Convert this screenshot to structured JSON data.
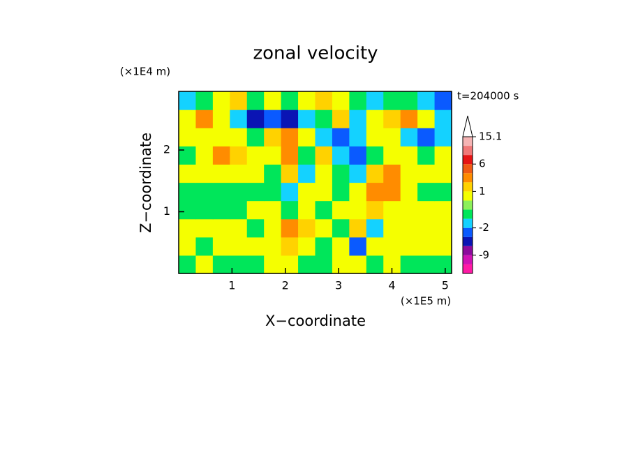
{
  "chart_data": {
    "type": "contour",
    "title": "zonal velocity",
    "xlabel": "X−coordinate",
    "ylabel": "Z−coordinate",
    "xunit": "(×1E5 m)",
    "yunit": "(×1E4 m)",
    "annotation": "t=204000 s",
    "xlim": [
      0,
      5.12
    ],
    "ylim": [
      0,
      2.95
    ],
    "xticks": [
      1,
      2,
      3,
      4,
      5
    ],
    "yticks": [
      1,
      2
    ],
    "x": [
      0.16,
      0.48,
      0.8,
      1.12,
      1.44,
      1.76,
      2.08,
      2.4,
      2.72,
      3.04,
      3.36,
      3.68,
      4.0,
      4.32,
      4.64,
      4.96
    ],
    "y": [
      0.1475,
      0.4425,
      0.7375,
      1.0325,
      1.3275,
      1.6225,
      1.9175,
      2.2125,
      2.5075,
      2.8025
    ],
    "z": [
      [
        -0.5,
        0.7,
        -0.5,
        -0.5,
        -0.5,
        0.7,
        0.7,
        -0.5,
        -0.5,
        0.7,
        0.7,
        -0.5,
        0.7,
        -0.5,
        -0.5,
        -0.5
      ],
      [
        0.7,
        -0.5,
        0.7,
        0.7,
        0.7,
        0.7,
        1.5,
        0.7,
        -0.5,
        0.7,
        -3,
        0.7,
        0.7,
        0.7,
        0.7,
        0.7
      ],
      [
        0.7,
        0.7,
        0.7,
        0.7,
        -0.5,
        0.7,
        3,
        1.5,
        0.7,
        -0.5,
        1.5,
        -1.5,
        0.7,
        0.7,
        0.7,
        0.7
      ],
      [
        -0.5,
        -0.5,
        -0.5,
        -0.5,
        0.7,
        0.7,
        -0.5,
        0.7,
        -0.5,
        0.7,
        0.7,
        1.5,
        0.7,
        0.7,
        0.7,
        0.7
      ],
      [
        -0.5,
        -0.5,
        -0.5,
        -0.5,
        -0.5,
        -0.5,
        -1.5,
        0.7,
        0.7,
        -0.5,
        0.7,
        3,
        3,
        0.7,
        -0.5,
        -0.5
      ],
      [
        0.7,
        0.7,
        0.7,
        0.7,
        0.7,
        -0.5,
        1.5,
        -1.5,
        0.7,
        -0.5,
        -1.5,
        1.5,
        3,
        0.7,
        0.7,
        0.7
      ],
      [
        -0.5,
        0.7,
        3,
        1.5,
        0.7,
        0.7,
        3,
        -0.5,
        1.5,
        -1.5,
        -3,
        -0.5,
        0.7,
        0.7,
        -0.5,
        0.7
      ],
      [
        0.7,
        0.7,
        0.7,
        0.7,
        -0.5,
        1.5,
        3,
        0.7,
        -1.5,
        -3,
        -1.5,
        0.7,
        0.7,
        -1.5,
        -3,
        -1.5
      ],
      [
        0.7,
        3,
        0.7,
        -1.5,
        -5,
        -3,
        -5,
        -1.5,
        -0.5,
        1.5,
        -1.5,
        0.7,
        1.5,
        3,
        0.7,
        -1.5
      ],
      [
        -1.5,
        -0.5,
        0.7,
        1.5,
        -0.5,
        0.7,
        -0.5,
        0.7,
        1.5,
        0.7,
        -0.5,
        -1.5,
        -0.5,
        -0.5,
        -1.5,
        -3
      ]
    ],
    "levels": [
      -15,
      -12,
      -9,
      -6,
      -4,
      -2,
      -1,
      0,
      0.5,
      1,
      2,
      4,
      6,
      9,
      12,
      15.1
    ],
    "colors": [
      "#ff1aa6",
      "#d012b4",
      "#8c0a9c",
      "#0a14b4",
      "#0a5aff",
      "#14d2ff",
      "#00e65a",
      "#8cf05a",
      "#f5ff00",
      "#ffd200",
      "#ff8c00",
      "#f05a14",
      "#e61414",
      "#f07878",
      "#f5b4b4"
    ],
    "cticks": [
      -9,
      -2,
      1,
      6,
      15.1
    ]
  }
}
